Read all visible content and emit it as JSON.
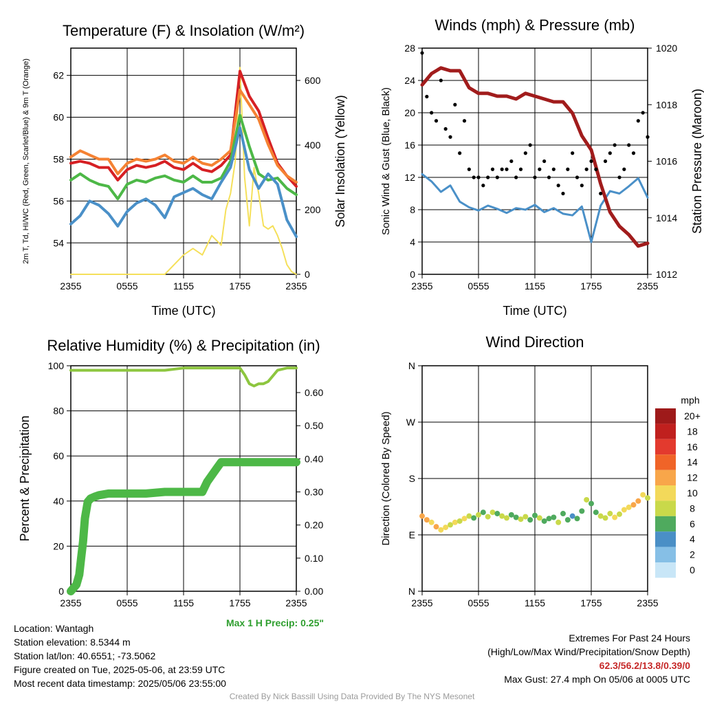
{
  "colors": {
    "red": "#d62024",
    "green": "#4db847",
    "blue": "#4a90c8",
    "orange": "#f58233",
    "yellow": "#f5e05a",
    "maroon": "#a11c1c",
    "black": "#000000",
    "rh": "#8dc63f",
    "precip": "#4db847"
  },
  "chart_data": [
    {
      "type": "line",
      "title": "Temperature (F) & Insolation (W/m²)",
      "xlabel": "Time (UTC)",
      "ylabel": "2m T, Td, HI/WC (Red, Green, Scarlet/Blue) & 9m T (Orange)",
      "ylabel_right": "Solar Insolation (Yellow)",
      "x_ticks": [
        "2355",
        "0555",
        "1155",
        "1755",
        "2355"
      ],
      "y_ticks": [
        "54",
        "56",
        "58",
        "60",
        "62"
      ],
      "y_right_ticks": [
        "0",
        "200",
        "400",
        "600"
      ],
      "ylim": [
        52.5,
        63.3
      ],
      "ylim_right": [
        0,
        700
      ],
      "grid": true,
      "series": [
        {
          "name": "2m T",
          "color": "red",
          "x": [
            0,
            1,
            2,
            3,
            4,
            5,
            6,
            7,
            8,
            9,
            10,
            11,
            12,
            13,
            14,
            15,
            16,
            17,
            18,
            19,
            20,
            21,
            22,
            23,
            24
          ],
          "values": [
            57.8,
            57.9,
            57.8,
            57.6,
            57.6,
            57.0,
            57.5,
            57.7,
            57.6,
            57.7,
            57.9,
            57.6,
            57.5,
            57.8,
            57.5,
            57.4,
            57.7,
            58.2,
            62.2,
            61.0,
            60.3,
            59.0,
            57.8,
            57.2,
            56.7
          ]
        },
        {
          "name": "9m T",
          "color": "orange",
          "x": [
            0,
            1,
            2,
            3,
            4,
            5,
            6,
            7,
            8,
            9,
            10,
            11,
            12,
            13,
            14,
            15,
            16,
            17,
            18,
            19,
            20,
            21,
            22,
            23,
            24
          ],
          "values": [
            58.1,
            58.4,
            58.2,
            58.0,
            58.0,
            57.3,
            57.8,
            58.0,
            57.9,
            58.0,
            58.2,
            57.9,
            57.8,
            58.1,
            57.8,
            57.7,
            58.0,
            58.4,
            61.3,
            60.6,
            59.9,
            58.7,
            57.7,
            57.2,
            56.9
          ]
        },
        {
          "name": "Td",
          "color": "green",
          "x": [
            0,
            1,
            2,
            3,
            4,
            5,
            6,
            7,
            8,
            9,
            10,
            11,
            12,
            13,
            14,
            15,
            16,
            17,
            18,
            19,
            20,
            21,
            22,
            23,
            24
          ],
          "values": [
            57.0,
            57.3,
            57.0,
            56.8,
            56.7,
            56.1,
            56.8,
            57.0,
            56.9,
            57.1,
            57.2,
            57.0,
            56.9,
            57.2,
            56.9,
            56.9,
            57.1,
            57.9,
            60.1,
            58.6,
            57.3,
            57.0,
            57.1,
            56.6,
            56.3
          ]
        },
        {
          "name": "HI/WC",
          "color": "blue",
          "x": [
            0,
            1,
            2,
            3,
            4,
            5,
            6,
            7,
            8,
            9,
            10,
            11,
            12,
            13,
            14,
            15,
            16,
            17,
            18,
            19,
            20,
            21,
            22,
            23,
            24
          ],
          "values": [
            54.9,
            55.3,
            56.0,
            55.8,
            55.4,
            54.8,
            55.5,
            55.9,
            56.1,
            55.8,
            55.2,
            56.2,
            56.4,
            56.6,
            56.3,
            56.1,
            56.9,
            57.6,
            59.5,
            57.5,
            56.6,
            57.3,
            56.8,
            55.1,
            54.3
          ]
        }
      ],
      "insolation": {
        "name": "Solar Insolation",
        "color": "yellow",
        "x": [
          0,
          2,
          4,
          6,
          8,
          10,
          12,
          13,
          14,
          15,
          16,
          16.5,
          17,
          17.5,
          18,
          18.5,
          19,
          19.5,
          20,
          20.5,
          21,
          21.5,
          22,
          22.5,
          23,
          23.5,
          24
        ],
        "values": [
          0,
          0,
          0,
          0,
          0,
          0,
          60,
          80,
          60,
          120,
          90,
          200,
          250,
          350,
          640,
          300,
          150,
          330,
          250,
          150,
          140,
          150,
          120,
          80,
          30,
          8,
          0
        ]
      }
    },
    {
      "type": "line",
      "title": "Winds (mph) & Pressure (mb)",
      "xlabel": "Time (UTC)",
      "ylabel": "Sonic Wind & Gust (Blue, Black)",
      "ylabel_right": "Station Pressure (Maroon)",
      "x_ticks": [
        "2355",
        "0555",
        "1155",
        "1755",
        "2355"
      ],
      "y_ticks": [
        "0",
        "4",
        "8",
        "12",
        "16",
        "20",
        "24",
        "28"
      ],
      "y_right_ticks": [
        "1012",
        "1014",
        "1016",
        "1018",
        "1020"
      ],
      "ylim": [
        0,
        28
      ],
      "ylim_right": [
        1012,
        1020
      ],
      "grid": true,
      "series": [
        {
          "name": "Sonic Wind",
          "color": "blue",
          "x": [
            0,
            1,
            2,
            3,
            4,
            5,
            6,
            7,
            8,
            9,
            10,
            11,
            12,
            13,
            14,
            15,
            16,
            17,
            18,
            19,
            20,
            21,
            22,
            23,
            24
          ],
          "values": [
            12.4,
            11.5,
            10.2,
            11.0,
            9.0,
            8.3,
            7.9,
            8.5,
            8.1,
            7.6,
            8.2,
            8.0,
            8.6,
            7.7,
            8.2,
            7.5,
            7.3,
            8.4,
            4.0,
            8.5,
            10.3,
            10.0,
            10.9,
            11.9,
            9.5
          ]
        },
        {
          "name": "Station Pressure",
          "color": "maroon",
          "x": [
            0,
            1,
            2,
            3,
            4,
            5,
            6,
            7,
            8,
            9,
            10,
            11,
            12,
            13,
            14,
            15,
            16,
            17,
            18,
            19,
            20,
            21,
            22,
            23,
            24
          ],
          "values": [
            1018.7,
            1019.1,
            1019.3,
            1019.2,
            1019.2,
            1018.6,
            1018.4,
            1018.4,
            1018.3,
            1018.3,
            1018.2,
            1018.4,
            1018.3,
            1018.2,
            1018.1,
            1018.1,
            1017.7,
            1016.9,
            1016.4,
            1015.2,
            1014.2,
            1013.7,
            1013.4,
            1013.0,
            1013.1
          ]
        }
      ],
      "gust": {
        "name": "Gust",
        "color": "black",
        "x": [
          0,
          0.5,
          1,
          1.5,
          2,
          2.5,
          3,
          3.5,
          4,
          4.5,
          5,
          5.5,
          6,
          6.5,
          7,
          7.5,
          8,
          8.5,
          9,
          9.5,
          10,
          10.5,
          11,
          11.5,
          12,
          12.5,
          13,
          13.5,
          14,
          14.5,
          15,
          15.5,
          16,
          16.5,
          17,
          17.5,
          18,
          18.5,
          19,
          19.5,
          20,
          20.5,
          21,
          21.5,
          22,
          22.5,
          23,
          23.5,
          24
        ],
        "values": [
          27.4,
          22,
          20,
          19,
          24,
          18,
          17,
          21,
          15,
          19,
          13,
          12,
          12,
          11,
          12,
          13,
          12,
          13,
          13,
          14,
          12,
          13,
          15,
          16,
          12,
          13,
          14,
          12,
          13,
          11,
          10,
          13,
          15,
          12,
          11,
          13,
          14,
          13,
          10,
          14,
          15,
          16,
          12,
          13,
          16,
          15,
          19,
          20,
          17
        ]
      }
    },
    {
      "type": "line",
      "title": "Relative Humidity (%) & Precipitation (in)",
      "xlabel": "",
      "ylabel": "Percent & Precipitation",
      "x_ticks": [
        "2355",
        "0555",
        "1155",
        "1755",
        "2355"
      ],
      "y_ticks": [
        "0",
        "20",
        "40",
        "60",
        "80",
        "100"
      ],
      "y_right_ticks": [
        "0.00",
        "0.10",
        "0.20",
        "0.30",
        "0.40",
        "0.50",
        "0.60"
      ],
      "ylim": [
        0,
        100
      ],
      "ylim_right": [
        0,
        0.681
      ],
      "grid": true,
      "series": [
        {
          "name": "RH",
          "color": "rh",
          "x": [
            0,
            2,
            4,
            6,
            8,
            10,
            12,
            14,
            16,
            18,
            18.5,
            19,
            19.5,
            20,
            20.5,
            21,
            22,
            23,
            24
          ],
          "values": [
            98,
            98,
            98,
            98,
            98,
            98,
            99,
            99,
            99,
            99,
            96,
            92,
            91,
            92,
            92,
            93,
            98,
            99,
            99
          ]
        },
        {
          "name": "Precipitation",
          "color": "precip",
          "x": [
            0,
            0.3,
            0.6,
            0.9,
            1.1,
            1.3,
            1.5,
            1.8,
            2.1,
            2.5,
            3,
            4,
            5,
            6,
            8,
            10,
            12,
            13,
            14,
            14.5,
            15,
            15.5,
            16,
            17,
            18,
            20,
            22,
            24
          ],
          "values": [
            0,
            0.01,
            0.02,
            0.05,
            0.1,
            0.15,
            0.22,
            0.27,
            0.28,
            0.285,
            0.29,
            0.295,
            0.295,
            0.295,
            0.295,
            0.3,
            0.3,
            0.3,
            0.3,
            0.33,
            0.35,
            0.37,
            0.39,
            0.39,
            0.39,
            0.39,
            0.39,
            0.39
          ]
        }
      ],
      "annotation": "Max 1 H Precip: 0.25\""
    },
    {
      "type": "scatter",
      "title": "Wind Direction",
      "xlabel": "",
      "ylabel": "Direction (Colored By Speed)",
      "x_ticks": [
        "2355",
        "0555",
        "1155",
        "1755",
        "2355"
      ],
      "y_ticks": [
        "N",
        "E",
        "S",
        "W",
        "N"
      ],
      "ylim": [
        0,
        360
      ],
      "grid": true,
      "points": {
        "x": [
          0,
          0.5,
          1,
          1.5,
          2,
          2.5,
          3,
          3.5,
          4,
          4.5,
          5,
          5.5,
          6,
          6.5,
          7,
          7.5,
          8,
          8.5,
          9,
          9.5,
          10,
          10.5,
          11,
          11.5,
          12,
          12.5,
          13,
          13.5,
          14,
          14.5,
          15,
          15.5,
          16,
          16.5,
          17,
          17.5,
          18,
          18.5,
          19,
          19.5,
          20,
          20.5,
          21,
          21.5,
          22,
          22.5,
          23,
          23.5,
          24
        ],
        "dir": [
          120,
          114,
          110,
          103,
          98,
          102,
          106,
          110,
          112,
          116,
          120,
          117,
          122,
          126,
          119,
          126,
          124,
          120,
          117,
          122,
          118,
          115,
          119,
          114,
          121,
          117,
          112,
          116,
          118,
          110,
          124,
          114,
          120,
          116,
          128,
          146,
          140,
          126,
          120,
          117,
          124,
          118,
          123,
          130,
          134,
          138,
          144,
          154,
          149
        ],
        "speed": [
          12,
          12,
          11,
          12,
          10,
          11,
          9,
          10,
          8,
          10,
          9,
          7,
          8,
          7,
          9,
          8,
          6,
          9,
          8,
          6,
          7,
          9,
          8,
          7,
          7,
          8,
          7,
          7,
          6,
          8,
          7,
          6,
          4,
          6,
          7,
          8,
          6,
          7,
          8,
          9,
          9,
          10,
          9,
          11,
          10,
          12,
          13,
          11,
          9
        ]
      },
      "colorbar": {
        "title": "mph",
        "labels": [
          "20+",
          "18",
          "16",
          "14",
          "12",
          "10",
          "8",
          "6",
          "4",
          "2",
          "0"
        ],
        "colors": [
          "#9e1a1a",
          "#c0201e",
          "#e33a2e",
          "#f06428",
          "#f8a64a",
          "#f3d95a",
          "#c9d94a",
          "#4faa5e",
          "#4a8fc6",
          "#86bfe6",
          "#c8e6f7"
        ]
      }
    }
  ],
  "info": {
    "location": "Location: Wantagh",
    "elevation": "Station elevation: 8.5344 m",
    "latlon": "Station lat/lon: 40.6551; -73.5062",
    "created": "Figure created on Tue, 2025-05-06, at 23:59 UTC",
    "recent": "Most recent data timestamp: 2025/05/06 23:55:00",
    "extremes_title": "Extremes For Past 24 Hours",
    "extremes_subtitle": "(High/Low/Max Wind/Precipitation/Snow Depth)",
    "extremes_values": "62.3/56.2/13.8/0.39/0",
    "max_gust": "Max Gust: 27.4 mph On 05/06 at 0005 UTC",
    "credit": "Created By Nick Bassill Using Data Provided By The NYS Mesonet"
  }
}
